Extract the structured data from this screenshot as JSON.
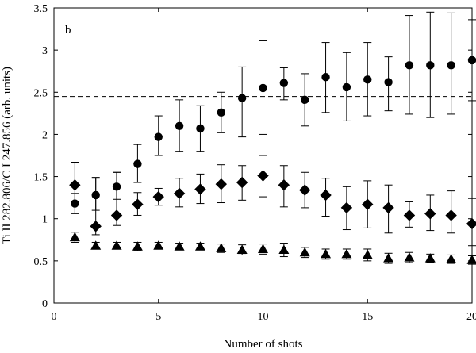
{
  "chart_data": {
    "type": "scatter",
    "panel_label": "b",
    "xlabel": "Number of shots",
    "ylabel": "Ti II 282.806/C I 247.856 (arb. units)",
    "xlim": [
      0,
      20
    ],
    "ylim": [
      0,
      3.5
    ],
    "xticks": [
      0,
      5,
      10,
      15,
      20
    ],
    "yticks": [
      0,
      0.5,
      1,
      1.5,
      2,
      2.5,
      3,
      3.5
    ],
    "grid": false,
    "legend": "none",
    "reference_line": {
      "y": 2.45,
      "style": "dashed"
    },
    "series": [
      {
        "marker": "circle",
        "x": [
          1,
          2,
          3,
          4,
          5,
          6,
          7,
          8,
          9,
          10,
          11,
          12,
          13,
          14,
          15,
          16,
          17,
          18,
          19,
          20
        ],
        "y": [
          1.18,
          1.28,
          1.38,
          1.65,
          1.97,
          2.1,
          2.07,
          2.26,
          2.43,
          2.55,
          2.61,
          2.41,
          2.68,
          2.56,
          2.65,
          2.62,
          2.82,
          2.82,
          2.82,
          2.88
        ],
        "err_low": [
          0.12,
          0.18,
          0.15,
          0.22,
          0.22,
          0.3,
          0.27,
          0.24,
          0.46,
          0.55,
          0.2,
          0.31,
          0.42,
          0.4,
          0.43,
          0.34,
          0.58,
          0.62,
          0.58,
          0.48
        ],
        "err_high": [
          0.12,
          0.2,
          0.17,
          0.23,
          0.25,
          0.31,
          0.27,
          0.24,
          0.37,
          0.56,
          0.18,
          0.31,
          0.41,
          0.41,
          0.44,
          0.3,
          0.59,
          0.63,
          0.62,
          0.48
        ]
      },
      {
        "marker": "diamond",
        "x": [
          1,
          2,
          3,
          4,
          5,
          6,
          7,
          8,
          9,
          10,
          11,
          12,
          13,
          14,
          15,
          16,
          17,
          18,
          19,
          20
        ],
        "y": [
          1.4,
          0.91,
          1.04,
          1.17,
          1.26,
          1.3,
          1.35,
          1.41,
          1.43,
          1.51,
          1.4,
          1.34,
          1.28,
          1.13,
          1.17,
          1.13,
          1.04,
          1.06,
          1.04,
          0.94
        ],
        "err_low": [
          0.2,
          0.1,
          0.12,
          0.13,
          0.1,
          0.16,
          0.17,
          0.22,
          0.21,
          0.25,
          0.26,
          0.21,
          0.25,
          0.26,
          0.28,
          0.3,
          0.14,
          0.2,
          0.21,
          0.26
        ],
        "err_high": [
          0.27,
          0.58,
          0.51,
          0.14,
          0.1,
          0.18,
          0.18,
          0.23,
          0.2,
          0.24,
          0.23,
          0.21,
          0.2,
          0.25,
          0.28,
          0.27,
          0.16,
          0.22,
          0.29,
          0.3
        ]
      },
      {
        "marker": "triangle",
        "x": [
          1,
          2,
          3,
          4,
          5,
          6,
          7,
          8,
          9,
          10,
          11,
          12,
          13,
          14,
          15,
          16,
          17,
          18,
          19,
          20
        ],
        "y": [
          0.78,
          0.68,
          0.68,
          0.67,
          0.68,
          0.67,
          0.67,
          0.65,
          0.63,
          0.64,
          0.63,
          0.6,
          0.58,
          0.58,
          0.57,
          0.53,
          0.54,
          0.53,
          0.52,
          0.51
        ],
        "err_low": [
          0.06,
          0.04,
          0.04,
          0.05,
          0.04,
          0.04,
          0.04,
          0.05,
          0.06,
          0.06,
          0.08,
          0.06,
          0.06,
          0.06,
          0.07,
          0.06,
          0.06,
          0.05,
          0.05,
          0.05
        ],
        "err_high": [
          0.06,
          0.04,
          0.04,
          0.05,
          0.04,
          0.04,
          0.04,
          0.05,
          0.06,
          0.06,
          0.08,
          0.06,
          0.06,
          0.06,
          0.07,
          0.06,
          0.06,
          0.05,
          0.05,
          0.05
        ]
      }
    ]
  }
}
